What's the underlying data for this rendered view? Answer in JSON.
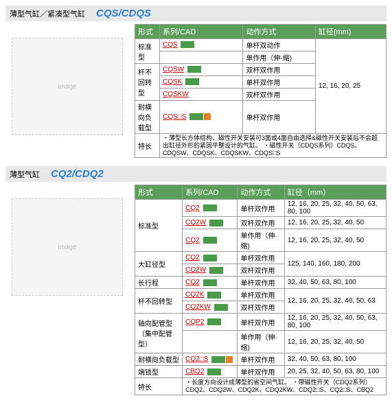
{
  "section1": {
    "title_zh": "薄型气缸／紧凑型气缸",
    "title_en": "CQS/CDQS",
    "headers": [
      "形式",
      "系列/CAD",
      "动作方式",
      "缸径(mm)"
    ],
    "image_label": "image",
    "rows": [
      {
        "form": "标准型",
        "rowspan": 2,
        "series": "CQS",
        "cad": true,
        "action": "单杆双动作",
        "dia": "12, 16, 20, 25",
        "diaRowspan": 6
      },
      {
        "series": "",
        "action": "单作用（伸·缩)"
      },
      {
        "form": "杆不回转型",
        "rowspan": 3,
        "series": "CQSW",
        "cad": true,
        "action": "双杆双作用"
      },
      {
        "series": "CQSK",
        "cad": true,
        "action": "单杆双作用"
      },
      {
        "series": "CQSKW",
        "action": "双杆双作用"
      },
      {
        "form": "耐横向负载型",
        "series": "CQS□S",
        "cadOrange": true,
        "action": "单杆双作用"
      }
    ],
    "features_label": "特长",
    "features": "・薄型长方体结构，磁性开关安装可3面或4面自由选择&磁性开关安装后不会超出缸径外形的紧固平整设计的气缸。\n・磁性开关（CDQS系列）CDQS、CDQSW、CDQSK、CDQSKW、CDQS□S"
  },
  "section2": {
    "title_zh": "薄型气缸",
    "title_en": "CQ2/CDQ2",
    "headers": [
      "形式",
      "系列/CAD",
      "动作方式",
      "缸径（mm）"
    ],
    "image_label": "image",
    "rows": [
      {
        "form": "标准型",
        "rowspan": 3,
        "series": "CQ2",
        "cad": true,
        "action": "单杆双作用",
        "dia": "12, 16, 20, 25, 32, 40, 50, 63, 80, 100"
      },
      {
        "series": "CQ2W",
        "cad": true,
        "action": "双杆双作用",
        "dia": "12, 16, 20, 25, 32, 40, 50"
      },
      {
        "series": "CQ2",
        "cad": true,
        "action": "单作用（伸·缩)",
        "dia": "12, 16, 20, 25, 32, 40, 50"
      },
      {
        "form": "大缸径型",
        "rowspan": 2,
        "series": "CQ2",
        "cad": true,
        "action": "单杆双作用",
        "dia": "125, 140, 160, 180, 200"
      },
      {
        "series": "CQ2W",
        "cad": true,
        "action": "双杆双作用"
      },
      {
        "form": "长行程",
        "series": "CQ2",
        "cad": true,
        "action": "单杆双作用",
        "dia": "32, 40, 50, 63, 80, 100"
      },
      {
        "form": "杆不回转型",
        "rowspan": 2,
        "series": "CQ2K",
        "cad": true,
        "action": "单杆双作用",
        "dia": "12, 16, 20, 25, 32, 40, 50, 63"
      },
      {
        "series": "CQ2KW",
        "cad": true,
        "action": "双杆双作用"
      },
      {
        "form": "轴向配管型（集中配管型）",
        "rowspan": 2,
        "series": "CQP2",
        "cad": true,
        "action": "单杆双作用",
        "dia": "12, 16, 20, 25, 32, 40, 50, 63, 80, 100"
      },
      {
        "series": "",
        "action": "单作用（伸·缩)",
        "dia": "12, 16, 20, 25, 32, 40, 50"
      },
      {
        "form": "耐横向负载型",
        "series": "CQ2□S",
        "cadOrange": true,
        "action": "单杆双作用",
        "dia": "32, 40, 50, 63, 80, 100"
      },
      {
        "form": "端锁型",
        "series": "CBQ2",
        "cad": true,
        "action": "单杆双作用",
        "dia": "20, 25, 32, 40, 50, 63, 80, 100"
      }
    ],
    "features_label": "特长",
    "features": "・长度方向设计成薄型的省空间气缸。\n・带磁性开关（CDQ2系列）CDQ2、CDQ2W、CDQ2K、CDQ2KW、CDQ2□S、CQ2□S、CBQ2"
  }
}
